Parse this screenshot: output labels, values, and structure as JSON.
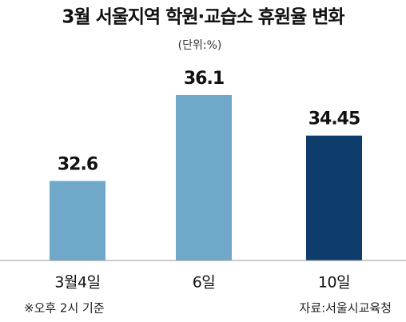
{
  "chart_data": {
    "type": "bar",
    "title": "3월 서울지역 학원·교습소 휴원율 변화",
    "subtitle": "(단위:%)",
    "categories": [
      "3월4일",
      "6일",
      "10일"
    ],
    "values": [
      32.6,
      36.1,
      34.45
    ],
    "colors": [
      "#6fa8c8",
      "#6fa8c8",
      "#0e3d6c"
    ],
    "ylim": [
      29.36,
      37.8
    ],
    "footnote": "※오후 2시 기준",
    "source": "자료:서울시교육청"
  }
}
